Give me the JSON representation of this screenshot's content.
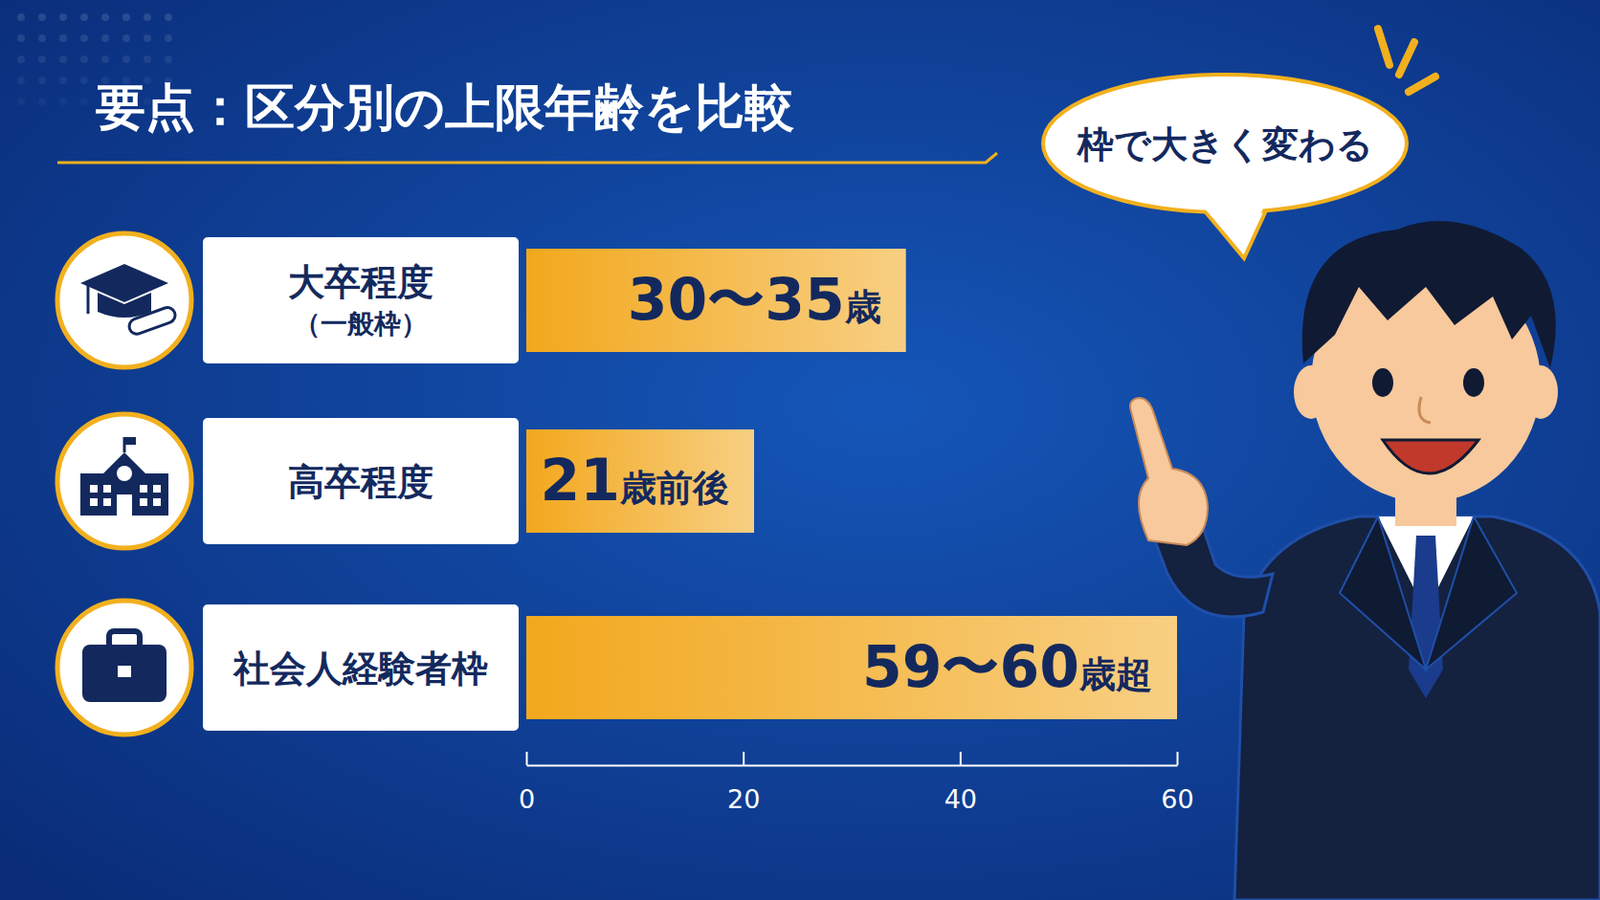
{
  "chart_data": {
    "type": "bar",
    "orientation": "horizontal",
    "title": "要点：区分別の上限年齢を比較",
    "annotation": "枠で大きく変わる",
    "categories": [
      "大卒程度（一般枠）",
      "高卒程度",
      "社会人経験者枠"
    ],
    "values": [
      35,
      21,
      60
    ],
    "value_labels": [
      "30〜35歳",
      "21歳前後",
      "59〜60歳超"
    ],
    "data_labels": true,
    "color": "#f2a81d",
    "xlim": [
      0,
      60
    ],
    "xticks": [
      0,
      20,
      40,
      60
    ]
  }
}
